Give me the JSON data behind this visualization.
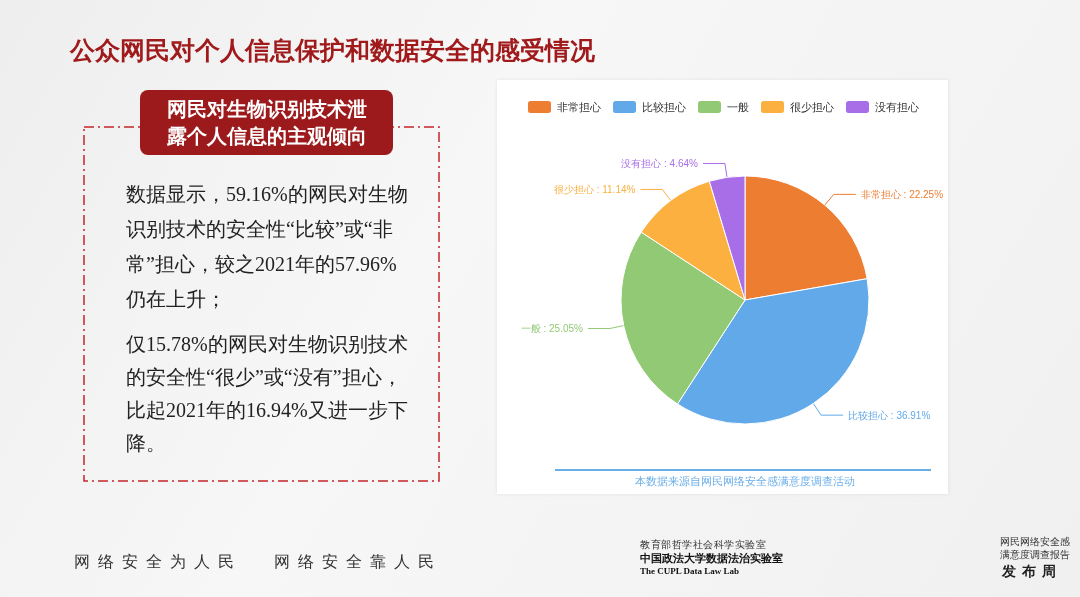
{
  "chart_data": [
    {
      "type": "other",
      "title": "公众网民对个人信息保护和数据安全的感受情况",
      "subtitle": "网民对生物识别技术泄露个人信息的主观倾向",
      "annotations": [
        "数据显示，59.16%的网民对生物识别技术的安全性“比较”或“非常”担心，较之2021年的57.96%仍在上升；",
        "仅15.78%的网民对生物识别技术的安全性“很少”或“没有”担心，比起2021年的16.94%又进一步下降。",
        "网络安全为人民",
        "网络安全靠人民",
        "教育部哲学社会科学实验室",
        "中国政法大学数据法治实验室",
        "The CUPL Data Law Lab",
        "网民网络安全感满意度调查报告",
        "发布周"
      ]
    },
    {
      "type": "pie",
      "categories": [
        "非常担心",
        "比较担心",
        "一般",
        "很少担心",
        "没有担心"
      ],
      "values": [
        22.25,
        36.91,
        25.05,
        11.14,
        4.64
      ],
      "colors": [
        "#ed7d31",
        "#62a9e9",
        "#92c974",
        "#fbb040",
        "#a86ee8"
      ],
      "value_labels": [
        "非常担心 : 22.25%",
        "比较担心 : 36.91%",
        "一般 : 25.05%",
        "很少担心 : 11.14%",
        "没有担心 : 4.64%"
      ],
      "legend": "top",
      "annotations": [
        "本数据来源自网民网络安全感满意度调查活动"
      ]
    }
  ]
}
